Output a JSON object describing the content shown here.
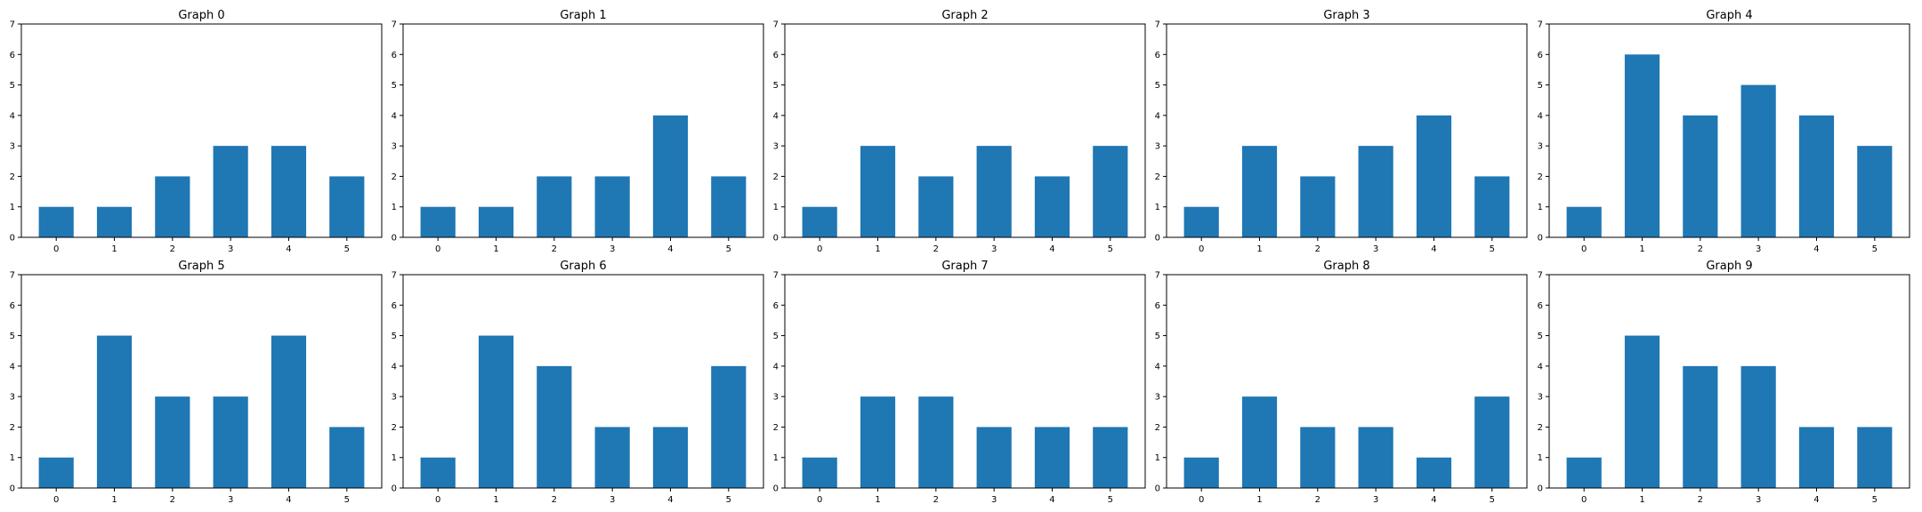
{
  "chart_data": [
    {
      "type": "bar",
      "title": "Graph 0",
      "categories": [
        "0",
        "1",
        "2",
        "3",
        "4",
        "5"
      ],
      "values": [
        1,
        1,
        2,
        3,
        3,
        2
      ],
      "ylim": [
        0,
        7
      ],
      "yticks": [
        "0",
        "1",
        "2",
        "3",
        "4",
        "5",
        "6",
        "7"
      ],
      "grid": false,
      "color": "#1f77b4"
    },
    {
      "type": "bar",
      "title": "Graph 1",
      "categories": [
        "0",
        "1",
        "2",
        "3",
        "4",
        "5"
      ],
      "values": [
        1,
        1,
        2,
        2,
        4,
        2
      ],
      "ylim": [
        0,
        7
      ],
      "yticks": [
        "0",
        "1",
        "2",
        "3",
        "4",
        "5",
        "6",
        "7"
      ],
      "grid": false,
      "color": "#1f77b4"
    },
    {
      "type": "bar",
      "title": "Graph 2",
      "categories": [
        "0",
        "1",
        "2",
        "3",
        "4",
        "5"
      ],
      "values": [
        1,
        3,
        2,
        3,
        2,
        3
      ],
      "ylim": [
        0,
        7
      ],
      "yticks": [
        "0",
        "1",
        "2",
        "3",
        "4",
        "5",
        "6",
        "7"
      ],
      "grid": false,
      "color": "#1f77b4"
    },
    {
      "type": "bar",
      "title": "Graph 3",
      "categories": [
        "0",
        "1",
        "2",
        "3",
        "4",
        "5"
      ],
      "values": [
        1,
        3,
        2,
        3,
        4,
        2
      ],
      "ylim": [
        0,
        7
      ],
      "yticks": [
        "0",
        "1",
        "2",
        "3",
        "4",
        "5",
        "6",
        "7"
      ],
      "grid": false,
      "color": "#1f77b4"
    },
    {
      "type": "bar",
      "title": "Graph 4",
      "categories": [
        "0",
        "1",
        "2",
        "3",
        "4",
        "5"
      ],
      "values": [
        1,
        6,
        4,
        5,
        4,
        3
      ],
      "ylim": [
        0,
        7
      ],
      "yticks": [
        "0",
        "1",
        "2",
        "3",
        "4",
        "5",
        "6",
        "7"
      ],
      "grid": false,
      "color": "#1f77b4"
    },
    {
      "type": "bar",
      "title": "Graph 5",
      "categories": [
        "0",
        "1",
        "2",
        "3",
        "4",
        "5"
      ],
      "values": [
        1,
        5,
        3,
        3,
        5,
        2
      ],
      "ylim": [
        0,
        7
      ],
      "yticks": [
        "0",
        "1",
        "2",
        "3",
        "4",
        "5",
        "6",
        "7"
      ],
      "grid": false,
      "color": "#1f77b4"
    },
    {
      "type": "bar",
      "title": "Graph 6",
      "categories": [
        "0",
        "1",
        "2",
        "3",
        "4",
        "5"
      ],
      "values": [
        1,
        5,
        4,
        2,
        2,
        4
      ],
      "ylim": [
        0,
        7
      ],
      "yticks": [
        "0",
        "1",
        "2",
        "3",
        "4",
        "5",
        "6",
        "7"
      ],
      "grid": false,
      "color": "#1f77b4"
    },
    {
      "type": "bar",
      "title": "Graph 7",
      "categories": [
        "0",
        "1",
        "2",
        "3",
        "4",
        "5"
      ],
      "values": [
        1,
        3,
        3,
        2,
        2,
        2
      ],
      "ylim": [
        0,
        7
      ],
      "yticks": [
        "0",
        "1",
        "2",
        "3",
        "4",
        "5",
        "6",
        "7"
      ],
      "grid": false,
      "color": "#1f77b4"
    },
    {
      "type": "bar",
      "title": "Graph 8",
      "categories": [
        "0",
        "1",
        "2",
        "3",
        "4",
        "5"
      ],
      "values": [
        1,
        3,
        2,
        2,
        1,
        3
      ],
      "ylim": [
        0,
        7
      ],
      "yticks": [
        "0",
        "1",
        "2",
        "3",
        "4",
        "5",
        "6",
        "7"
      ],
      "grid": false,
      "color": "#1f77b4"
    },
    {
      "type": "bar",
      "title": "Graph 9",
      "categories": [
        "0",
        "1",
        "2",
        "3",
        "4",
        "5"
      ],
      "values": [
        1,
        5,
        4,
        4,
        2,
        2
      ],
      "ylim": [
        0,
        7
      ],
      "yticks": [
        "0",
        "1",
        "2",
        "3",
        "4",
        "5",
        "6",
        "7"
      ],
      "grid": false,
      "color": "#1f77b4"
    }
  ]
}
